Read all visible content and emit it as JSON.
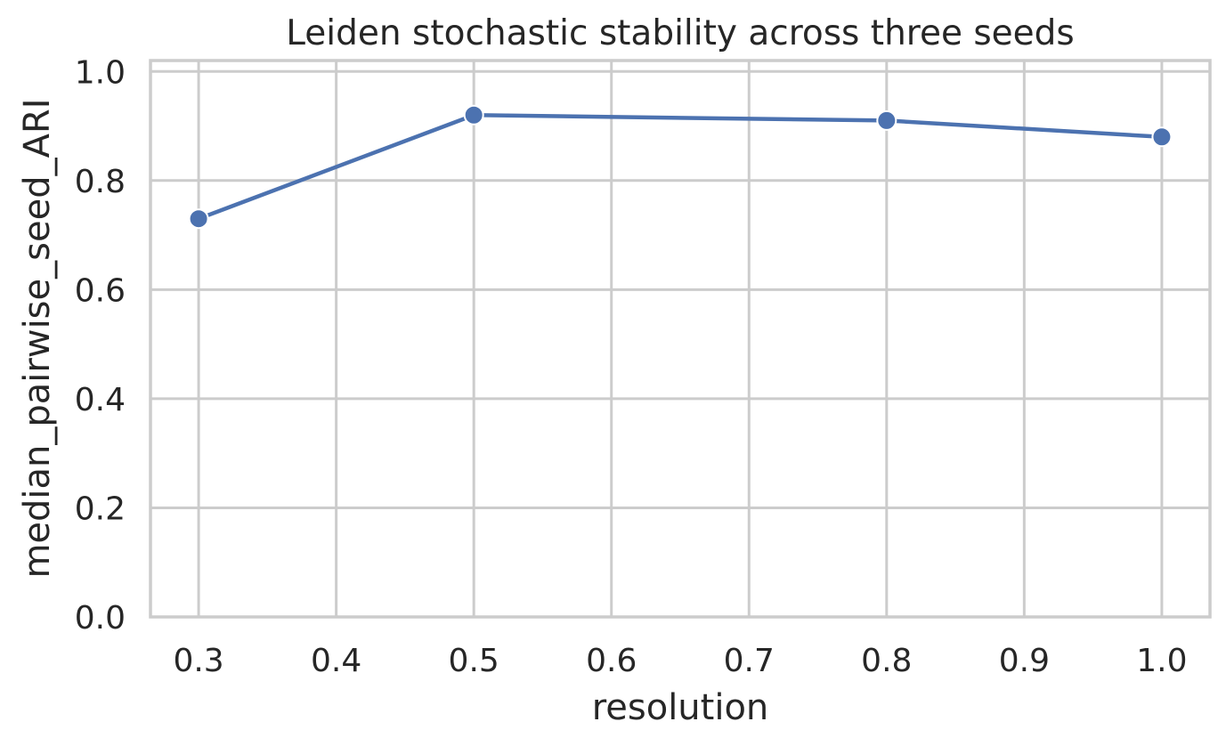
{
  "chart_data": {
    "type": "line",
    "title": "Leiden stochastic stability across three seeds",
    "xlabel": "resolution",
    "ylabel": "median_pairwise_seed_ARI",
    "xlim": [
      0.265,
      1.035
    ],
    "ylim": [
      0.0,
      1.02
    ],
    "x_ticks": [
      "0.3",
      "0.4",
      "0.5",
      "0.6",
      "0.7",
      "0.8",
      "0.9",
      "1.0"
    ],
    "y_ticks": [
      "0.0",
      "0.2",
      "0.4",
      "0.6",
      "0.8",
      "1.0"
    ],
    "grid": true,
    "series": [
      {
        "color": "#4c72b0",
        "x": [
          0.3,
          0.5,
          0.8,
          1.0
        ],
        "y": [
          0.73,
          0.92,
          0.91,
          0.88
        ]
      }
    ]
  }
}
